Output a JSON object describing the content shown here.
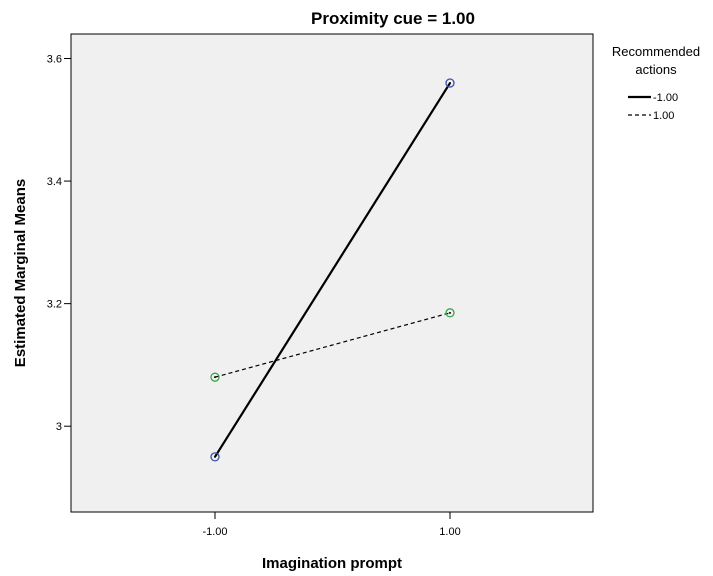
{
  "chart_data": {
    "type": "line",
    "title": "Proximity cue = 1.00",
    "xlabel": "Imagination prompt",
    "ylabel": "Estimated Marginal Means",
    "categories": [
      "-1.00",
      "1.00"
    ],
    "y_ticks": [
      {
        "value": 3.0,
        "label": "3"
      },
      {
        "value": 3.2,
        "label": "3.2"
      },
      {
        "value": 3.4,
        "label": "3.4"
      },
      {
        "value": 3.6,
        "label": "3.6"
      }
    ],
    "ylim": [
      2.86,
      3.64
    ],
    "legend": {
      "title_lines": [
        "Recommended",
        "actions"
      ],
      "placement": "right"
    },
    "series": [
      {
        "name": "-1.00",
        "values": [
          2.95,
          3.56
        ],
        "line_style": "solid",
        "marker_color": "#3b4fa8"
      },
      {
        "name": "1.00",
        "values": [
          3.08,
          3.185
        ],
        "line_style": "dashed",
        "marker_color": "#3aa54a"
      }
    ],
    "plot_background": "#f0f0f0"
  }
}
